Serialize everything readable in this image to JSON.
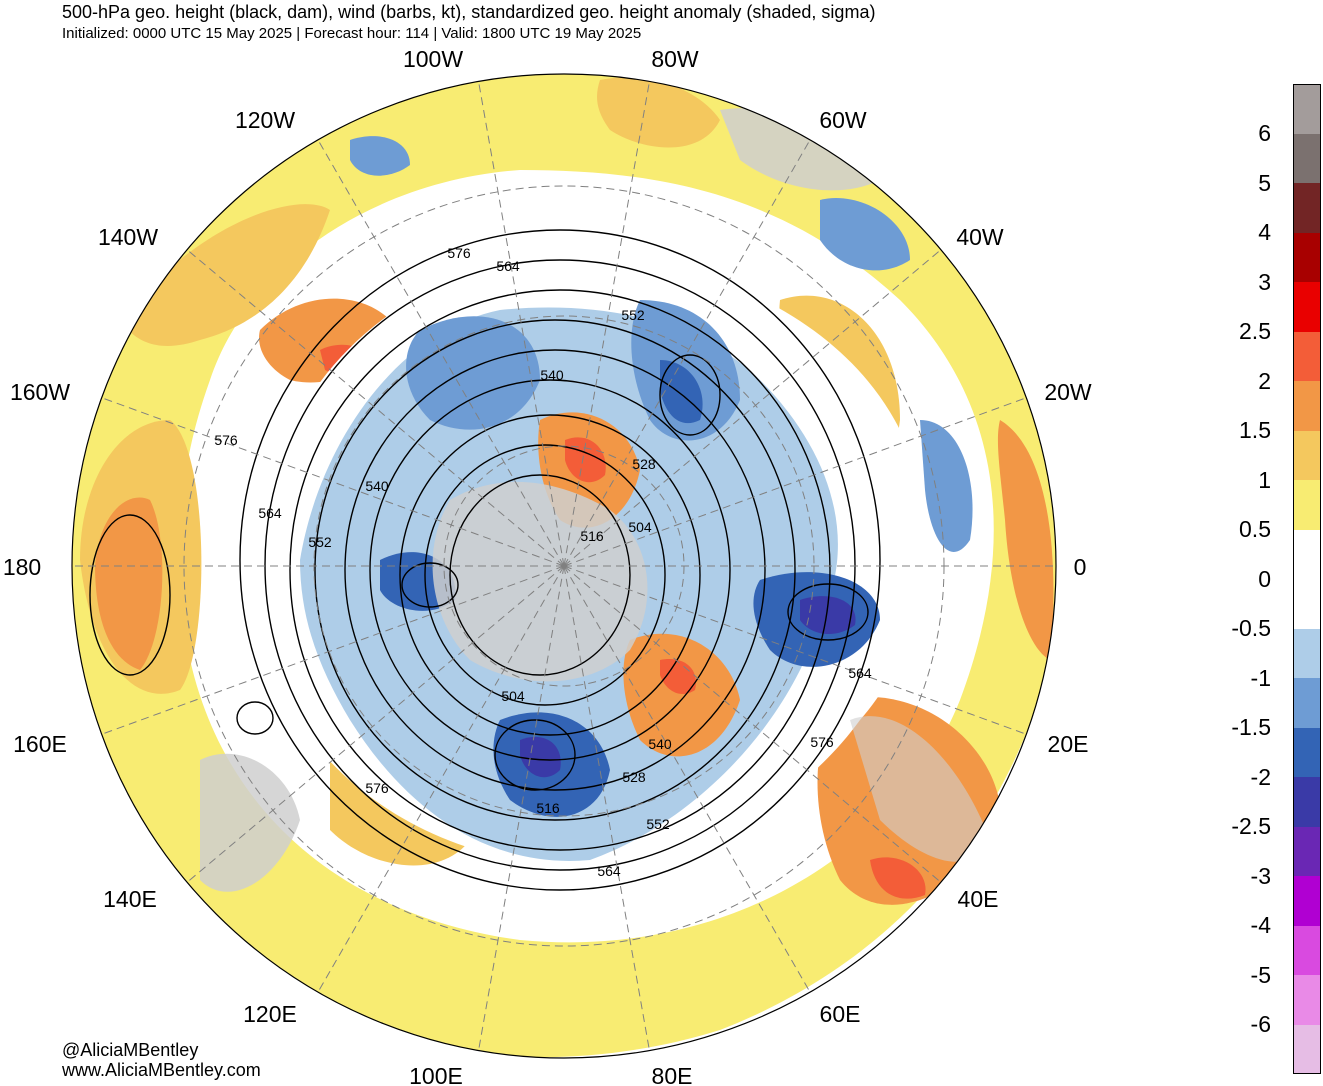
{
  "title": "500-hPa geo. height (black, dam), wind (barbs, kt), standardized geo. height anomaly (shaded, sigma)",
  "subtitle": "Initialized: 0000 UTC 15 May 2025 | Forecast hour: 114 | Valid: 1800 UTC 19 May 2025",
  "credit": {
    "handle": "@AliciaMBentley",
    "website": "www.AliciaMBentley.com"
  },
  "projection": "south-polar-stereographic",
  "longitude_labels": [
    {
      "text": "100W",
      "name": "lon-label-100w"
    },
    {
      "text": "80W",
      "name": "lon-label-80w"
    },
    {
      "text": "120W",
      "name": "lon-label-120w"
    },
    {
      "text": "60W",
      "name": "lon-label-60w"
    },
    {
      "text": "140W",
      "name": "lon-label-140w"
    },
    {
      "text": "40W",
      "name": "lon-label-40w"
    },
    {
      "text": "160W",
      "name": "lon-label-160w"
    },
    {
      "text": "20W",
      "name": "lon-label-20w"
    },
    {
      "text": "180",
      "name": "lon-label-180"
    },
    {
      "text": "0",
      "name": "lon-label-0"
    },
    {
      "text": "160E",
      "name": "lon-label-160e"
    },
    {
      "text": "20E",
      "name": "lon-label-20e"
    },
    {
      "text": "140E",
      "name": "lon-label-140e"
    },
    {
      "text": "40E",
      "name": "lon-label-40e"
    },
    {
      "text": "120E",
      "name": "lon-label-120e"
    },
    {
      "text": "60E",
      "name": "lon-label-60e"
    },
    {
      "text": "100E",
      "name": "lon-label-100e"
    },
    {
      "text": "80E",
      "name": "lon-label-80e"
    }
  ],
  "contour_labels": [
    "576",
    "564",
    "552",
    "540",
    "576",
    "540",
    "564",
    "552",
    "528",
    "504",
    "516",
    "504",
    "540",
    "528",
    "516",
    "552",
    "564",
    "576",
    "564",
    "576"
  ],
  "colorbar": {
    "ticks": [
      "6",
      "5",
      "4",
      "3",
      "2.5",
      "2",
      "1.5",
      "1",
      "0.5",
      "0",
      "-0.5",
      "-1",
      "-1.5",
      "-2",
      "-2.5",
      "-3",
      "-4",
      "-5",
      "-6"
    ],
    "colors": [
      "#a39c9b",
      "#7b716f",
      "#722525",
      "#a80000",
      "#e90000",
      "#f35d38",
      "#f29746",
      "#f4c85e",
      "#f8ec72",
      "#ffffff",
      "#ffffff",
      "#aecde8",
      "#6e9cd4",
      "#3364b5",
      "#3a3aa7",
      "#6a27b4",
      "#b000d2",
      "#d94ae0",
      "#e98ae7",
      "#e6bde5"
    ]
  },
  "colors": {
    "land": "#cfcfcf",
    "contour": "#000000",
    "grid": "#808080"
  }
}
